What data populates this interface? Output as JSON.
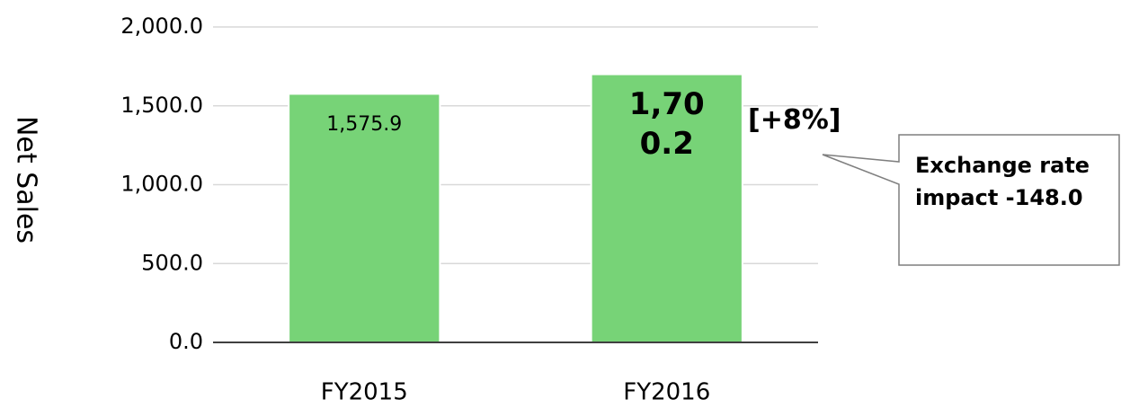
{
  "chart_data": {
    "type": "bar",
    "y_axis_label": "Net Sales",
    "categories": [
      "FY2015",
      "FY2016"
    ],
    "values": [
      1575.9,
      1700.2
    ],
    "value_labels": [
      "1,575.9",
      "1,700.2"
    ],
    "color": "#77d377",
    "ylim": [
      0,
      2000
    ],
    "yticks": [
      {
        "value": 0,
        "label": "0.0"
      },
      {
        "value": 500,
        "label": "500.0"
      },
      {
        "value": 1000,
        "label": "1,000.0"
      },
      {
        "value": 1500,
        "label": "1,500.0"
      },
      {
        "value": 2000,
        "label": "2,000.0"
      }
    ],
    "grid": true,
    "annotations": [
      "[+8%]",
      "Exchange rate impact -148.0"
    ]
  }
}
